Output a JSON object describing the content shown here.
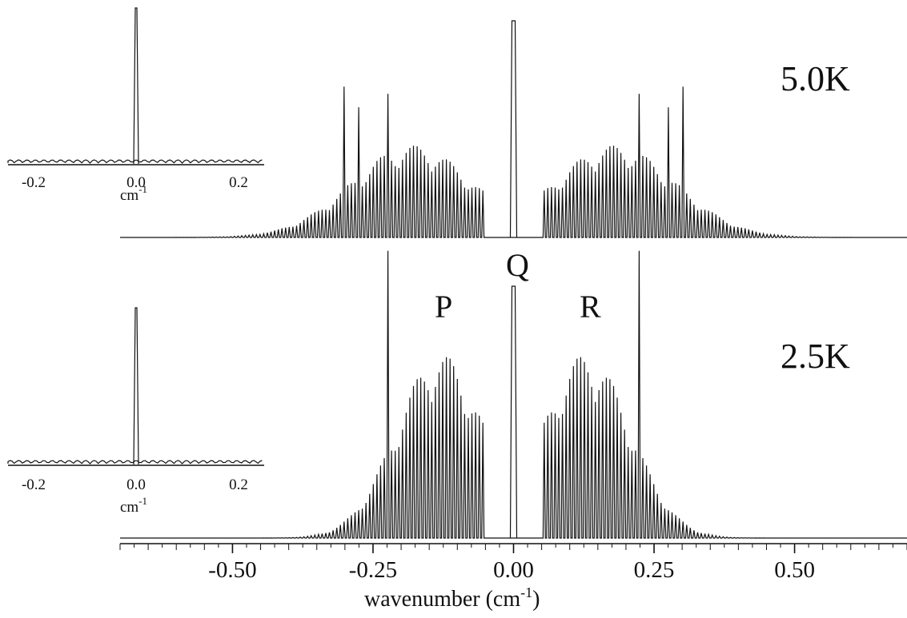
{
  "chart_data": [
    {
      "type": "line",
      "panel": "upper spectrum",
      "temperature_label": "5.0K",
      "xlabel": "wavenumber (cm⁻¹)",
      "x_tick_labels": [
        "-0.50",
        "-0.25",
        "0.00",
        "0.25",
        "0.50"
      ],
      "x_ticks": [
        -0.5,
        -0.25,
        0,
        0.25,
        0.5
      ],
      "xlim": [
        -0.7,
        0.7
      ],
      "branches": {
        "P_peak_region": -0.18,
        "Q_center": 0.0,
        "R_peak_region": 0.18
      },
      "envelope_center_cm1": 0.18,
      "strong_lines_cm1": [
        -0.3,
        -0.275,
        -0.225,
        0.225,
        0.275,
        0.3
      ],
      "q_branch_saturated": true
    },
    {
      "type": "line",
      "panel": "lower spectrum",
      "temperature_label": "2.5K",
      "xlabel": "wavenumber (cm⁻¹)",
      "x_tick_labels": [
        "-0.50",
        "-0.25",
        "0.00",
        "0.25",
        "0.50"
      ],
      "x_ticks": [
        -0.5,
        -0.25,
        0,
        0.25,
        0.5
      ],
      "xlim": [
        -0.7,
        0.7
      ],
      "branch_labels": [
        "P",
        "Q",
        "R"
      ],
      "envelope_center_cm1": 0.13,
      "strong_lines_cm1": [
        -0.225,
        0.225
      ],
      "q_branch_saturated": true
    },
    {
      "type": "line",
      "panel": "inset upper",
      "x_tick_labels": [
        "-0.2",
        "0.0",
        "0.2"
      ],
      "x_ticks": [
        -0.2,
        0.0,
        0.2
      ],
      "xlim": [
        -0.25,
        0.25
      ],
      "unit_label": "cm⁻¹",
      "peak_x": 0.0,
      "peak_height_relative": 1.0
    },
    {
      "type": "line",
      "panel": "inset lower",
      "x_tick_labels": [
        "-0.2",
        "0.0",
        "0.2"
      ],
      "x_ticks": [
        -0.2,
        0.0,
        0.2
      ],
      "xlim": [
        -0.25,
        0.25
      ],
      "unit_label": "cm⁻¹",
      "peak_x": 0.0,
      "peak_height_relative": 1.0
    }
  ],
  "labels": {
    "temp_upper": "5.0K",
    "temp_lower": "2.5K",
    "branch_p": "P",
    "branch_q": "Q",
    "branch_r": "R",
    "x_axis_main": "wavenumber (cm",
    "x_axis_exp": "-1",
    "x_axis_close": ")",
    "inset_unit": "cm",
    "inset_unit_exp": "-1"
  }
}
